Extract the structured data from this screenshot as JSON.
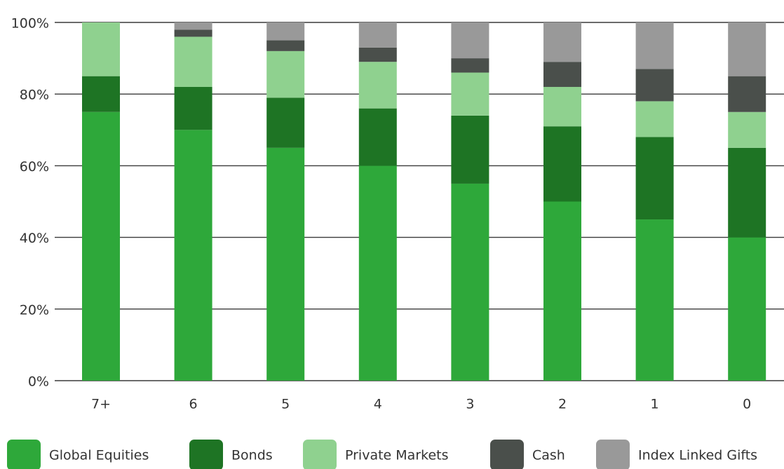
{
  "chart_data": {
    "type": "bar",
    "stacked": true,
    "title": "",
    "xlabel": "",
    "ylabel": "",
    "ylim": [
      0,
      100
    ],
    "y_ticks": [
      "0%",
      "20%",
      "40%",
      "60%",
      "80%",
      "100%"
    ],
    "y_tick_values": [
      0,
      20,
      40,
      60,
      80,
      100
    ],
    "grid": true,
    "legend_position": "bottom",
    "categories": [
      "7+",
      "6",
      "5",
      "4",
      "3",
      "2",
      "1",
      "0"
    ],
    "series": [
      {
        "name": "Global Equities",
        "color": "#2ea83a",
        "values": [
          75,
          70,
          65,
          60,
          55,
          50,
          45,
          40
        ]
      },
      {
        "name": "Bonds",
        "color": "#1e7424",
        "values": [
          10,
          12,
          14,
          16,
          19,
          21,
          23,
          25
        ]
      },
      {
        "name": "Private Markets",
        "color": "#8fd18f",
        "values": [
          15,
          14,
          13,
          13,
          12,
          11,
          10,
          10
        ]
      },
      {
        "name": "Cash",
        "color": "#4a4f4b",
        "values": [
          0,
          2,
          3,
          4,
          4,
          7,
          9,
          10
        ]
      },
      {
        "name": "Index Linked Gifts",
        "color": "#999999",
        "values": [
          0,
          2,
          5,
          7,
          10,
          11,
          13,
          15
        ]
      }
    ]
  }
}
